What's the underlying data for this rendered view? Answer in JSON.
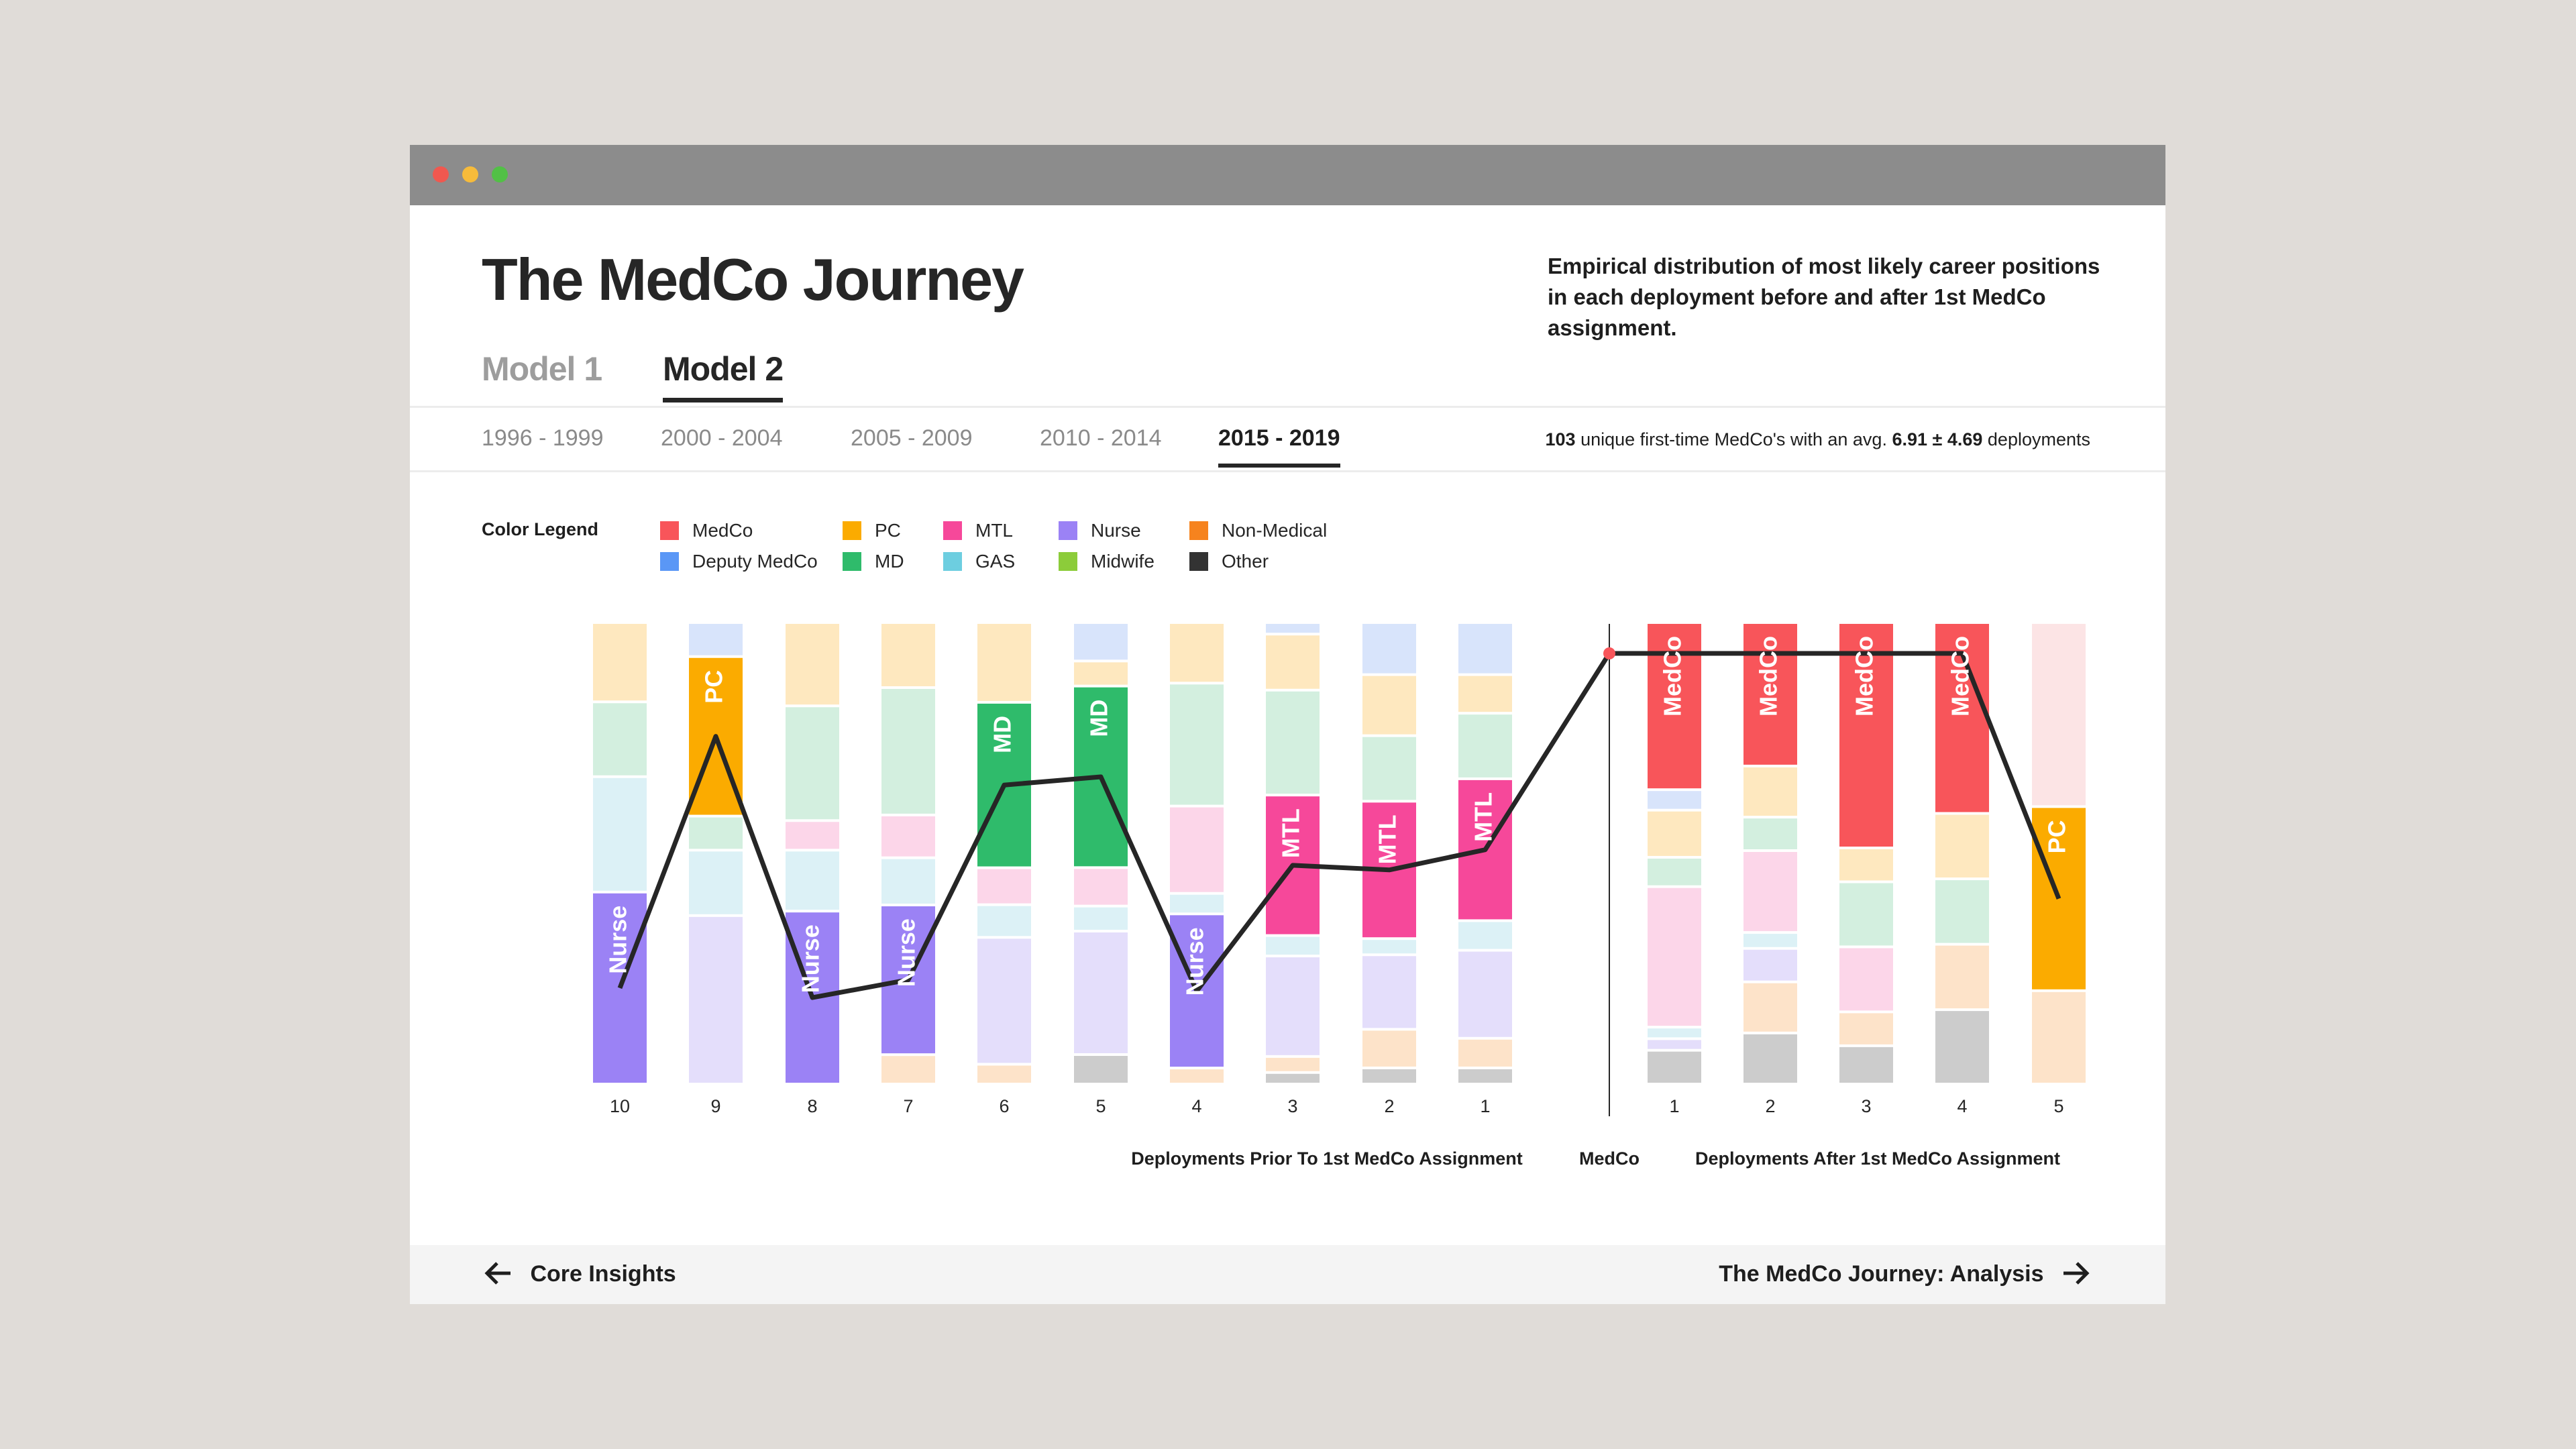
{
  "window": {
    "controls": [
      "close",
      "minimize",
      "maximize"
    ]
  },
  "page_title": "The MedCo Journey",
  "description": "Empirical distribution of most likely career positions in each deployment before and after 1st MedCo assignment.",
  "model_tabs": [
    {
      "label": "Model 1",
      "active": false
    },
    {
      "label": "Model 2",
      "active": true
    }
  ],
  "period_tabs": [
    {
      "label": "1996 - 1999",
      "active": false
    },
    {
      "label": "2000 - 2004",
      "active": false
    },
    {
      "label": "2005 - 2009",
      "active": false
    },
    {
      "label": "2010 - 2014",
      "active": false
    },
    {
      "label": "2015 - 2019",
      "active": true
    }
  ],
  "summary": {
    "count": "103",
    "text_1": "unique first-time MedCo's with an avg.",
    "avg": "6.91 ± 4.69",
    "text_2": "deployments"
  },
  "legend": {
    "title": "Color Legend",
    "items": [
      {
        "label": "MedCo",
        "color": "#f8555a"
      },
      {
        "label": "Deputy MedCo",
        "color": "#5a97f6"
      },
      {
        "label": "PC",
        "color": "#fbab00"
      },
      {
        "label": "MD",
        "color": "#2fbb6b"
      },
      {
        "label": "MTL",
        "color": "#f6489a"
      },
      {
        "label": "GAS",
        "color": "#6dcee0"
      },
      {
        "label": "Nurse",
        "color": "#9b82f5"
      },
      {
        "label": "Midwife",
        "color": "#8ccc3a"
      },
      {
        "label": "Non-Medical",
        "color": "#f6831e"
      },
      {
        "label": "Other",
        "color": "#333333"
      }
    ]
  },
  "chart_data": {
    "type": "bar",
    "stacked": true,
    "value_unit": "share of deployments (%)",
    "faded_colors": {
      "MedCo": "#fce4e5",
      "Deputy MedCo": "#d8e4fb",
      "PC": "#fee8bf",
      "MD": "#d3efdf",
      "MTL": "#fcd6e9",
      "GAS": "#dcf1f6",
      "Nurse": "#e4defb",
      "Midwife": "#e6f3d6",
      "Non-Medical": "#fde3c9",
      "Other": "#cccccc"
    },
    "bars": [
      {
        "group": "before",
        "x": "10",
        "highlight": "Nurse",
        "segments": [
          [
            "PC",
            17
          ],
          [
            "MD",
            16
          ],
          [
            "GAS",
            25
          ],
          [
            "Nurse",
            42
          ]
        ]
      },
      {
        "group": "before",
        "x": "9",
        "highlight": "PC",
        "segments": [
          [
            "Deputy MedCo",
            7
          ],
          [
            "PC",
            35
          ],
          [
            "MD",
            7
          ],
          [
            "GAS",
            14
          ],
          [
            "Nurse",
            37
          ]
        ]
      },
      {
        "group": "before",
        "x": "8",
        "highlight": "Nurse",
        "segments": [
          [
            "PC",
            18
          ],
          [
            "MD",
            25
          ],
          [
            "MTL",
            6
          ],
          [
            "GAS",
            13
          ],
          [
            "Nurse",
            38
          ]
        ]
      },
      {
        "group": "before",
        "x": "7",
        "highlight": "Nurse",
        "segments": [
          [
            "PC",
            14
          ],
          [
            "MD",
            28
          ],
          [
            "MTL",
            9
          ],
          [
            "GAS",
            10
          ],
          [
            "Nurse",
            33
          ],
          [
            "Non-Medical",
            6
          ]
        ]
      },
      {
        "group": "before",
        "x": "6",
        "highlight": "MD",
        "segments": [
          [
            "PC",
            18
          ],
          [
            "MD",
            38
          ],
          [
            "MTL",
            8
          ],
          [
            "GAS",
            7
          ],
          [
            "Nurse",
            29
          ],
          [
            "Non-Medical",
            4
          ]
        ]
      },
      {
        "group": "before",
        "x": "5",
        "highlight": "MD",
        "segments": [
          [
            "Deputy MedCo",
            8
          ],
          [
            "PC",
            5
          ],
          [
            "MD",
            40
          ],
          [
            "MTL",
            8
          ],
          [
            "GAS",
            5
          ],
          [
            "Nurse",
            27
          ],
          [
            "Other",
            6
          ]
        ]
      },
      {
        "group": "before",
        "x": "4",
        "highlight": "Nurse",
        "segments": [
          [
            "PC",
            13
          ],
          [
            "MD",
            27
          ],
          [
            "MTL",
            19
          ],
          [
            "GAS",
            4
          ],
          [
            "Nurse",
            34
          ],
          [
            "Non-Medical",
            3
          ]
        ]
      },
      {
        "group": "before",
        "x": "3",
        "highlight": "MTL",
        "segments": [
          [
            "Deputy MedCo",
            2
          ],
          [
            "PC",
            12
          ],
          [
            "MD",
            23
          ],
          [
            "MTL",
            31
          ],
          [
            "GAS",
            4
          ],
          [
            "Nurse",
            22
          ],
          [
            "Non-Medical",
            3
          ],
          [
            "Other",
            2
          ]
        ]
      },
      {
        "group": "before",
        "x": "2",
        "highlight": "MTL",
        "segments": [
          [
            "Deputy MedCo",
            11
          ],
          [
            "PC",
            13
          ],
          [
            "MD",
            14
          ],
          [
            "MTL",
            30
          ],
          [
            "GAS",
            3
          ],
          [
            "Nurse",
            16
          ],
          [
            "Non-Medical",
            8
          ],
          [
            "Other",
            3
          ]
        ]
      },
      {
        "group": "before",
        "x": "1",
        "highlight": "MTL",
        "segments": [
          [
            "Deputy MedCo",
            11
          ],
          [
            "PC",
            8
          ],
          [
            "MD",
            14
          ],
          [
            "MTL",
            31
          ],
          [
            "GAS",
            6
          ],
          [
            "Nurse",
            19
          ],
          [
            "Non-Medical",
            6
          ],
          [
            "Other",
            3
          ]
        ]
      },
      {
        "group": "after",
        "x": "1",
        "highlight": "MedCo",
        "segments": [
          [
            "MedCo",
            37
          ],
          [
            "Deputy MedCo",
            4
          ],
          [
            "PC",
            10
          ],
          [
            "MD",
            6
          ],
          [
            "MTL",
            31
          ],
          [
            "GAS",
            2
          ],
          [
            "Nurse",
            2
          ],
          [
            "Other",
            7
          ]
        ]
      },
      {
        "group": "after",
        "x": "2",
        "highlight": "MedCo",
        "segments": [
          [
            "MedCo",
            32
          ],
          [
            "PC",
            11
          ],
          [
            "MD",
            7
          ],
          [
            "MTL",
            18
          ],
          [
            "GAS",
            3
          ],
          [
            "Nurse",
            7
          ],
          [
            "Non-Medical",
            11
          ],
          [
            "Other",
            11
          ]
        ]
      },
      {
        "group": "after",
        "x": "3",
        "highlight": "MedCo",
        "segments": [
          [
            "MedCo",
            50
          ],
          [
            "PC",
            7
          ],
          [
            "MD",
            14
          ],
          [
            "MTL",
            14
          ],
          [
            "Non-Medical",
            7
          ],
          [
            "Other",
            8
          ]
        ]
      },
      {
        "group": "after",
        "x": "4",
        "highlight": "MedCo",
        "segments": [
          [
            "MedCo",
            42
          ],
          [
            "PC",
            14
          ],
          [
            "MD",
            14
          ],
          [
            "Non-Medical",
            14
          ],
          [
            "Other",
            16
          ]
        ]
      },
      {
        "group": "after",
        "x": "5",
        "highlight": "PC",
        "segments": [
          [
            "MedCo",
            40
          ],
          [
            "PC",
            40
          ],
          [
            "Non-Medical",
            20
          ]
        ]
      }
    ],
    "path": [
      "Nurse",
      "PC",
      "Nurse",
      "Nurse",
      "MD",
      "MD",
      "Nurse",
      "MTL",
      "MTL",
      "MTL",
      "MedCo",
      "MedCo",
      "MedCo",
      "MedCo",
      "MedCo",
      "PC"
    ],
    "medco_label": "MedCo",
    "xlabel_before": "Deployments Prior To 1st MedCo Assignment",
    "xlabel_after": "Deployments After 1st MedCo Assignment",
    "ylim": [
      0,
      100
    ]
  },
  "footer": {
    "prev_label": "Core Insights",
    "next_label": "The MedCo Journey: Analysis"
  }
}
